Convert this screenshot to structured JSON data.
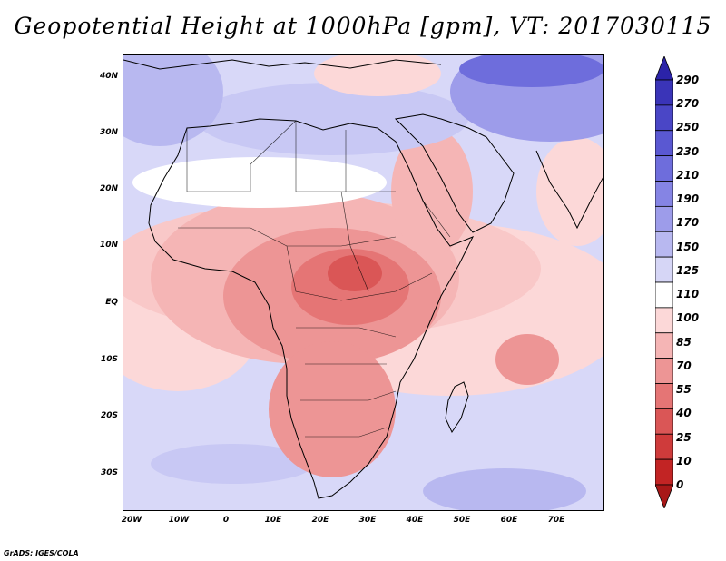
{
  "title": "Geopotential Height at 1000hPa [gpm], VT: 2017030115",
  "credit": "GrADS: IGES/COLA",
  "map": {
    "lon_range": [
      -22,
      80
    ],
    "lat_range": [
      -37,
      45
    ],
    "y_ticks": [
      "40N",
      "30N",
      "20N",
      "10N",
      "EQ",
      "10S",
      "20S",
      "30S"
    ],
    "x_ticks": [
      "20W",
      "10W",
      "0",
      "10E",
      "20E",
      "30E",
      "40E",
      "50E",
      "60E",
      "70E"
    ],
    "background_color": "#d8d8f8",
    "coastline_color": "#000000"
  },
  "colorbar": {
    "labels": [
      "290",
      "270",
      "250",
      "230",
      "210",
      "190",
      "170",
      "150",
      "125",
      "110",
      "100",
      "85",
      "70",
      "55",
      "40",
      "25",
      "10",
      "0"
    ],
    "colors": [
      "#2b23a8",
      "#3a34b8",
      "#4a46c6",
      "#5a58d2",
      "#6e6ddc",
      "#8584e4",
      "#9d9cea",
      "#b8b8f0",
      "#d6d6f6",
      "#ffffff",
      "#fcd8d8",
      "#f5b5b5",
      "#ed9595",
      "#e57575",
      "#da5656",
      "#cf3b3b",
      "#c22424",
      "#a81818"
    ]
  }
}
